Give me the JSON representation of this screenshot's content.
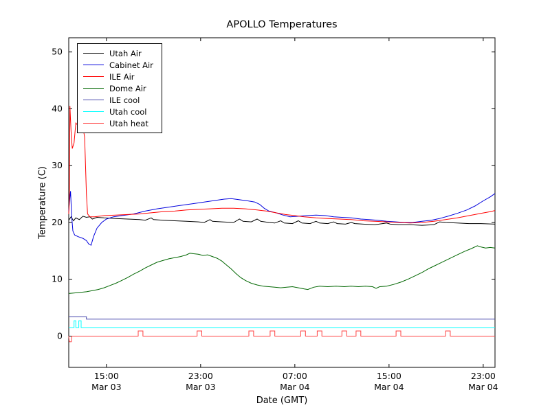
{
  "chart_data": {
    "type": "line",
    "title": "APOLLO Temperatures",
    "xlabel": "Date (GMT)",
    "ylabel": "Temperature (C)",
    "xlim": [
      0,
      36.2
    ],
    "ylim": [
      -5.5,
      52.5
    ],
    "grid": false,
    "legend_position": "upper left",
    "yticks": [
      0,
      10,
      20,
      30,
      40,
      50
    ],
    "xticks": [
      {
        "pos": 3.2,
        "time": "15:00",
        "date": "Mar 03"
      },
      {
        "pos": 11.2,
        "time": "23:00",
        "date": "Mar 03"
      },
      {
        "pos": 19.2,
        "time": "07:00",
        "date": "Mar 04"
      },
      {
        "pos": 27.2,
        "time": "15:00",
        "date": "Mar 04"
      },
      {
        "pos": 35.2,
        "time": "23:00",
        "date": "Mar 04"
      }
    ],
    "series": [
      {
        "name": "Utah Air",
        "color": "#000000",
        "points": [
          [
            0,
            20.4
          ],
          [
            0.2,
            21.0
          ],
          [
            0.4,
            20.3
          ],
          [
            0.6,
            20.8
          ],
          [
            0.9,
            20.5
          ],
          [
            1.2,
            21.1
          ],
          [
            1.5,
            20.9
          ],
          [
            1.8,
            21.0
          ],
          [
            2.0,
            20.6
          ],
          [
            2.4,
            20.9
          ],
          [
            3.0,
            20.8
          ],
          [
            4,
            20.7
          ],
          [
            5,
            20.6
          ],
          [
            6,
            20.5
          ],
          [
            6.5,
            20.4
          ],
          [
            7,
            20.8
          ],
          [
            7.2,
            20.5
          ],
          [
            8,
            20.4
          ],
          [
            9,
            20.3
          ],
          [
            10,
            20.2
          ],
          [
            11,
            20.1
          ],
          [
            11.5,
            20.0
          ],
          [
            12,
            20.5
          ],
          [
            12.2,
            20.2
          ],
          [
            13,
            20.1
          ],
          [
            14,
            20.0
          ],
          [
            14.5,
            20.6
          ],
          [
            14.8,
            20.2
          ],
          [
            15.5,
            20.1
          ],
          [
            16,
            20.6
          ],
          [
            16.3,
            20.2
          ],
          [
            17,
            20.0
          ],
          [
            17.5,
            19.9
          ],
          [
            18,
            20.3
          ],
          [
            18.3,
            19.9
          ],
          [
            19,
            19.8
          ],
          [
            19.5,
            20.3
          ],
          [
            19.8,
            19.9
          ],
          [
            20.5,
            19.8
          ],
          [
            21,
            20.2
          ],
          [
            21.3,
            19.9
          ],
          [
            22,
            19.8
          ],
          [
            22.5,
            20.1
          ],
          [
            22.8,
            19.8
          ],
          [
            23.5,
            19.7
          ],
          [
            24,
            20.0
          ],
          [
            24.3,
            19.8
          ],
          [
            25,
            19.7
          ],
          [
            26,
            19.6
          ],
          [
            27,
            19.9
          ],
          [
            27.3,
            19.7
          ],
          [
            28,
            19.6
          ],
          [
            29,
            19.6
          ],
          [
            30,
            19.5
          ],
          [
            31,
            19.6
          ],
          [
            31.5,
            20.1
          ],
          [
            32,
            20.0
          ],
          [
            33,
            19.9
          ],
          [
            34,
            19.8
          ],
          [
            35,
            19.8
          ],
          [
            36.2,
            19.7
          ]
        ]
      },
      {
        "name": "Cabinet Air",
        "color": "#0000dd",
        "points": [
          [
            0,
            22.0
          ],
          [
            0.1,
            24.5
          ],
          [
            0.15,
            25.5
          ],
          [
            0.25,
            21.0
          ],
          [
            0.35,
            18.5
          ],
          [
            0.5,
            17.8
          ],
          [
            0.8,
            17.5
          ],
          [
            1.2,
            17.2
          ],
          [
            1.5,
            16.8
          ],
          [
            1.7,
            16.2
          ],
          [
            1.9,
            16.0
          ],
          [
            2.1,
            17.5
          ],
          [
            2.4,
            19.0
          ],
          [
            2.8,
            20.0
          ],
          [
            3.2,
            20.6
          ],
          [
            3.8,
            21.0
          ],
          [
            4.5,
            21.2
          ],
          [
            5.5,
            21.5
          ],
          [
            6.5,
            22.0
          ],
          [
            7.5,
            22.4
          ],
          [
            8.5,
            22.7
          ],
          [
            9.5,
            23.0
          ],
          [
            10.5,
            23.3
          ],
          [
            11.5,
            23.6
          ],
          [
            12.5,
            23.9
          ],
          [
            13.2,
            24.1
          ],
          [
            13.8,
            24.2
          ],
          [
            14.5,
            24.0
          ],
          [
            15.2,
            23.8
          ],
          [
            15.8,
            23.6
          ],
          [
            16.2,
            23.2
          ],
          [
            16.6,
            22.5
          ],
          [
            17.0,
            22.0
          ],
          [
            17.6,
            21.7
          ],
          [
            18.2,
            21.3
          ],
          [
            18.8,
            21.0
          ],
          [
            19.5,
            21.1
          ],
          [
            20.2,
            21.2
          ],
          [
            21.0,
            21.3
          ],
          [
            21.8,
            21.2
          ],
          [
            22.5,
            21.0
          ],
          [
            23.2,
            20.9
          ],
          [
            24.0,
            20.8
          ],
          [
            24.8,
            20.6
          ],
          [
            25.5,
            20.5
          ],
          [
            26.2,
            20.4
          ],
          [
            27.0,
            20.2
          ],
          [
            27.8,
            20.1
          ],
          [
            28.5,
            20.0
          ],
          [
            29.2,
            20.0
          ],
          [
            30.0,
            20.2
          ],
          [
            30.8,
            20.4
          ],
          [
            31.5,
            20.7
          ],
          [
            32.2,
            21.1
          ],
          [
            33.0,
            21.6
          ],
          [
            33.8,
            22.2
          ],
          [
            34.5,
            22.9
          ],
          [
            35.2,
            23.8
          ],
          [
            35.8,
            24.5
          ],
          [
            36.2,
            25.1
          ]
        ]
      },
      {
        "name": "ILE Air",
        "color": "#ff0000",
        "points": [
          [
            0,
            21.5
          ],
          [
            0.05,
            24.0
          ],
          [
            0.1,
            40.5
          ],
          [
            0.2,
            36.0
          ],
          [
            0.3,
            33.0
          ],
          [
            0.45,
            34.0
          ],
          [
            0.6,
            37.5
          ],
          [
            0.8,
            37.0
          ],
          [
            1.0,
            36.5
          ],
          [
            1.2,
            36.8
          ],
          [
            1.35,
            35.0
          ],
          [
            1.5,
            25.0
          ],
          [
            1.6,
            21.5
          ],
          [
            1.8,
            21.0
          ],
          [
            2.2,
            21.0
          ],
          [
            3.0,
            21.2
          ],
          [
            4,
            21.3
          ],
          [
            5,
            21.4
          ],
          [
            6,
            21.5
          ],
          [
            7,
            21.7
          ],
          [
            8,
            21.9
          ],
          [
            9,
            22.0
          ],
          [
            10,
            22.2
          ],
          [
            11,
            22.3
          ],
          [
            12,
            22.4
          ],
          [
            13,
            22.5
          ],
          [
            14,
            22.5
          ],
          [
            15,
            22.4
          ],
          [
            16,
            22.2
          ],
          [
            16.8,
            22.0
          ],
          [
            17.6,
            21.7
          ],
          [
            18.4,
            21.4
          ],
          [
            19.2,
            21.2
          ],
          [
            20,
            21.0
          ],
          [
            21,
            20.8
          ],
          [
            22,
            20.7
          ],
          [
            23,
            20.6
          ],
          [
            24,
            20.5
          ],
          [
            25,
            20.3
          ],
          [
            26,
            20.2
          ],
          [
            27,
            20.1
          ],
          [
            28,
            20.0
          ],
          [
            29,
            19.9
          ],
          [
            30,
            20.0
          ],
          [
            31,
            20.2
          ],
          [
            32,
            20.5
          ],
          [
            33,
            20.8
          ],
          [
            34,
            21.2
          ],
          [
            35,
            21.6
          ],
          [
            35.8,
            21.9
          ],
          [
            36.2,
            22.1
          ]
        ]
      },
      {
        "name": "Dome Air",
        "color": "#006600",
        "points": [
          [
            0,
            7.5
          ],
          [
            0.5,
            7.6
          ],
          [
            1,
            7.7
          ],
          [
            1.5,
            7.8
          ],
          [
            2,
            8.0
          ],
          [
            2.5,
            8.2
          ],
          [
            3,
            8.5
          ],
          [
            3.5,
            8.9
          ],
          [
            4,
            9.3
          ],
          [
            4.5,
            9.8
          ],
          [
            5,
            10.3
          ],
          [
            5.5,
            10.9
          ],
          [
            6,
            11.4
          ],
          [
            6.5,
            12.0
          ],
          [
            7,
            12.5
          ],
          [
            7.5,
            13.0
          ],
          [
            8,
            13.3
          ],
          [
            8.5,
            13.6
          ],
          [
            9,
            13.8
          ],
          [
            9.5,
            14.0
          ],
          [
            10,
            14.3
          ],
          [
            10.3,
            14.6
          ],
          [
            10.6,
            14.5
          ],
          [
            11,
            14.4
          ],
          [
            11.4,
            14.2
          ],
          [
            11.8,
            14.3
          ],
          [
            12.2,
            14.0
          ],
          [
            12.6,
            13.7
          ],
          [
            13,
            13.2
          ],
          [
            13.4,
            12.5
          ],
          [
            13.8,
            11.8
          ],
          [
            14.2,
            11.0
          ],
          [
            14.6,
            10.3
          ],
          [
            15,
            9.8
          ],
          [
            15.5,
            9.3
          ],
          [
            16,
            9.0
          ],
          [
            16.5,
            8.8
          ],
          [
            17,
            8.7
          ],
          [
            17.5,
            8.6
          ],
          [
            18,
            8.5
          ],
          [
            18.5,
            8.6
          ],
          [
            19,
            8.7
          ],
          [
            19.5,
            8.5
          ],
          [
            20,
            8.3
          ],
          [
            20.3,
            8.2
          ],
          [
            20.8,
            8.6
          ],
          [
            21.3,
            8.8
          ],
          [
            22,
            8.7
          ],
          [
            22.7,
            8.8
          ],
          [
            23.4,
            8.7
          ],
          [
            24,
            8.8
          ],
          [
            24.6,
            8.7
          ],
          [
            25.2,
            8.8
          ],
          [
            25.8,
            8.7
          ],
          [
            26.1,
            8.4
          ],
          [
            26.4,
            8.7
          ],
          [
            27,
            8.8
          ],
          [
            27.6,
            9.1
          ],
          [
            28.2,
            9.5
          ],
          [
            28.8,
            10.0
          ],
          [
            29.4,
            10.6
          ],
          [
            30,
            11.2
          ],
          [
            30.6,
            11.9
          ],
          [
            31.2,
            12.5
          ],
          [
            31.8,
            13.1
          ],
          [
            32.4,
            13.7
          ],
          [
            33,
            14.3
          ],
          [
            33.6,
            14.9
          ],
          [
            34.2,
            15.4
          ],
          [
            34.7,
            15.9
          ],
          [
            35,
            15.7
          ],
          [
            35.4,
            15.5
          ],
          [
            35.8,
            15.6
          ],
          [
            36.2,
            15.5
          ]
        ]
      },
      {
        "name": "ILE cool",
        "color": "#4444aa",
        "points": [
          [
            0,
            3.4
          ],
          [
            1.5,
            3.4
          ],
          [
            1.5,
            3.0
          ],
          [
            36.2,
            3.0
          ]
        ]
      },
      {
        "name": "Utah cool",
        "color": "#00ffff",
        "points": [
          [
            0,
            1.5
          ],
          [
            0.45,
            1.5
          ],
          [
            0.45,
            2.7
          ],
          [
            0.6,
            2.7
          ],
          [
            0.6,
            1.5
          ],
          [
            0.85,
            1.5
          ],
          [
            0.85,
            2.7
          ],
          [
            1.05,
            2.7
          ],
          [
            1.05,
            1.5
          ],
          [
            36.2,
            1.5
          ]
        ]
      },
      {
        "name": "Utah heat",
        "color": "#ff4040",
        "points": [
          [
            0,
            0
          ],
          [
            0.05,
            -1.0
          ],
          [
            0.22,
            -1.0
          ],
          [
            0.27,
            0
          ],
          [
            5.9,
            0
          ],
          [
            5.9,
            0.9
          ],
          [
            6.3,
            0.9
          ],
          [
            6.3,
            0
          ],
          [
            10.9,
            0
          ],
          [
            10.9,
            0.9
          ],
          [
            11.3,
            0.9
          ],
          [
            11.3,
            0
          ],
          [
            15.3,
            0
          ],
          [
            15.3,
            0.9
          ],
          [
            15.7,
            0.9
          ],
          [
            15.7,
            0
          ],
          [
            17.1,
            0
          ],
          [
            17.1,
            0.9
          ],
          [
            17.5,
            0.9
          ],
          [
            17.5,
            0
          ],
          [
            19.7,
            0
          ],
          [
            19.7,
            0.9
          ],
          [
            20.1,
            0.9
          ],
          [
            20.1,
            0
          ],
          [
            21.1,
            0
          ],
          [
            21.1,
            0.9
          ],
          [
            21.5,
            0.9
          ],
          [
            21.5,
            0
          ],
          [
            23.2,
            0
          ],
          [
            23.2,
            0.9
          ],
          [
            23.6,
            0.9
          ],
          [
            23.6,
            0
          ],
          [
            24.4,
            0
          ],
          [
            24.4,
            0.9
          ],
          [
            24.8,
            0.9
          ],
          [
            24.8,
            0
          ],
          [
            27.8,
            0
          ],
          [
            27.8,
            0.9
          ],
          [
            28.2,
            0.9
          ],
          [
            28.2,
            0
          ],
          [
            32.0,
            0
          ],
          [
            32.0,
            0.9
          ],
          [
            32.4,
            0.9
          ],
          [
            32.4,
            0
          ],
          [
            36.2,
            0
          ]
        ]
      }
    ]
  }
}
